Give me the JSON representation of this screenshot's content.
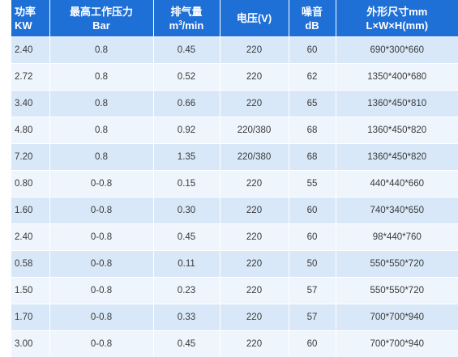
{
  "table": {
    "headers": [
      {
        "line1": "功率",
        "line2": "KW"
      },
      {
        "line1": "最高工作压力",
        "line2": "Bar"
      },
      {
        "line1": "排气量",
        "line2_pre": "m",
        "line2_sup": "3",
        "line2_post": "/min"
      },
      {
        "line1": "电压(V)"
      },
      {
        "line1": "噪音",
        "line2": "dB"
      },
      {
        "line1": "外形尺寸mm",
        "line2": "L×W×H(mm)"
      }
    ],
    "rows": [
      [
        "2.40",
        "0.8",
        "0.45",
        "220",
        "60",
        "690*300*660"
      ],
      [
        "2.72",
        "0.8",
        "0.52",
        "220",
        "62",
        "1350*400*680"
      ],
      [
        "3.40",
        "0.8",
        "0.66",
        "220",
        "65",
        "1360*450*810"
      ],
      [
        "4.80",
        "0.8",
        "0.92",
        "220/380",
        "68",
        "1360*450*820"
      ],
      [
        "7.20",
        "0.8",
        "1.35",
        "220/380",
        "68",
        "1360*450*820"
      ],
      [
        "0.80",
        "0-0.8",
        "0.15",
        "220",
        "55",
        "440*440*660"
      ],
      [
        "1.60",
        "0-0.8",
        "0.30",
        "220",
        "60",
        "740*340*650"
      ],
      [
        "2.40",
        "0-0.8",
        "0.45",
        "220",
        "60",
        "98*440*760"
      ],
      [
        "0.58",
        "0-0.8",
        "0.11",
        "220",
        "50",
        "550*550*720"
      ],
      [
        "1.50",
        "0-0.8",
        "0.23",
        "220",
        "57",
        "550*550*720"
      ],
      [
        "1.70",
        "0-0.8",
        "0.33",
        "220",
        "57",
        "700*700*940"
      ],
      [
        "3.00",
        "0-0.8",
        "0.45",
        "220",
        "60",
        "700*700*940"
      ]
    ]
  }
}
